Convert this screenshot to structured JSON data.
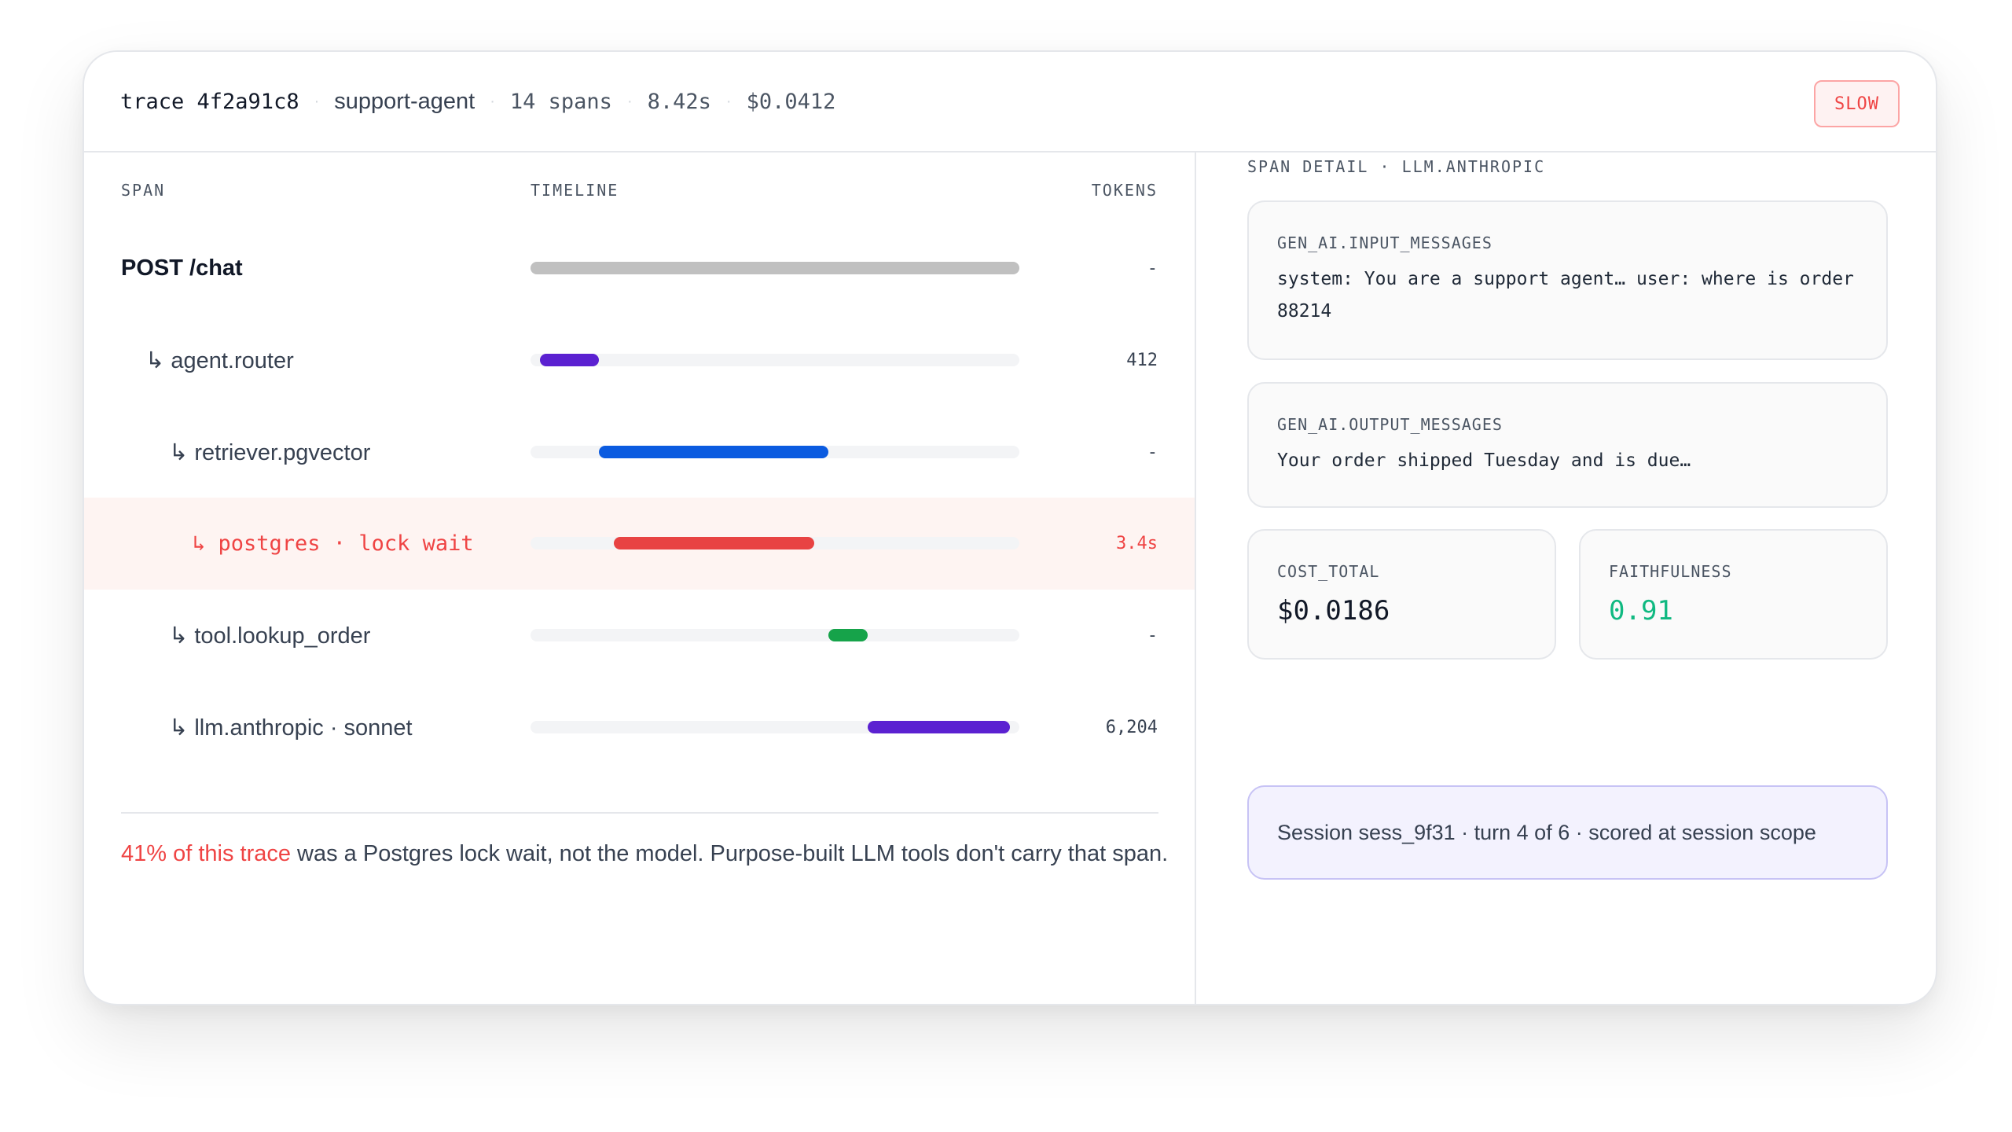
{
  "header": {
    "trace": "trace 4f2a91c8",
    "service": "support-agent",
    "spans": "14 spans",
    "duration": "8.42s",
    "cost": "$0.0412",
    "separator": "·",
    "badge": "SLOW"
  },
  "table": {
    "col_span": "SPAN",
    "col_timeline": "TIMELINE",
    "col_tokens": "TOKENS",
    "rows": [
      {
        "name": "POST /chat",
        "tokens": "-",
        "bar_start": 0.0,
        "bar_end": 1.0,
        "color": "#c0c0c0"
      },
      {
        "name": "↳ agent.router",
        "tokens": "412",
        "bar_start": 0.02,
        "bar_end": 0.14,
        "color": "#5b21d1"
      },
      {
        "name": "↳ retriever.pgvector",
        "tokens": "-",
        "bar_start": 0.14,
        "bar_end": 0.61,
        "color": "#0b5be0"
      },
      {
        "name": "↳ postgres · lock wait",
        "tokens": "3.4s",
        "bar_start": 0.17,
        "bar_end": 0.58,
        "color": "#e84343"
      },
      {
        "name": "↳ tool.lookup_order",
        "tokens": "-",
        "bar_start": 0.61,
        "bar_end": 0.69,
        "color": "#16a34a"
      },
      {
        "name": "↳ llm.anthropic · sonnet",
        "tokens": "6,204",
        "bar_start": 0.69,
        "bar_end": 0.98,
        "color": "#5b21d1"
      }
    ]
  },
  "footnote": {
    "highlight": "41% of this trace",
    "rest": " was a Postgres lock wait, not the model. Purpose-built LLM tools don't carry that span."
  },
  "detail": {
    "title": "SPAN DETAIL · LLM.ANTHROPIC",
    "input_label": "GEN_AI.INPUT_MESSAGES",
    "input_text": "system: You are a support agent… user: where is order 88214",
    "output_label": "GEN_AI.OUTPUT_MESSAGES",
    "output_text": "Your order shipped Tuesday and is due…",
    "cost_label": "COST_TOTAL",
    "cost_value": "$0.0186",
    "faith_label": "FAITHFULNESS",
    "faith_value": "0.91",
    "session_text": "Session sess_9f31 · turn 4 of 6 · scored at session scope"
  }
}
